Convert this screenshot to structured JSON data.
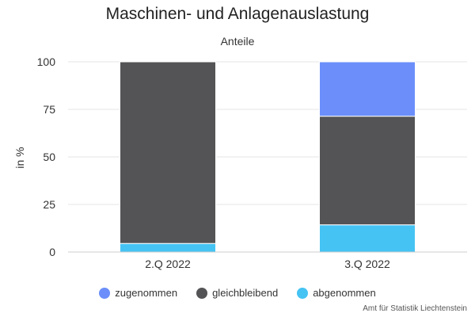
{
  "chart_data": {
    "type": "bar",
    "stacked": true,
    "title": "Maschinen- und Anlagenauslastung",
    "subtitle": "Anteile",
    "xlabel": "",
    "ylabel": "in %",
    "categories": [
      "2.Q 2022",
      "3.Q 2022"
    ],
    "ylim": [
      0,
      100
    ],
    "yticks": [
      0,
      25,
      50,
      75,
      100
    ],
    "grid": true,
    "legend_position": "bottom",
    "series": [
      {
        "name": "zugenommen",
        "color": "#6b8efa",
        "values": [
          0,
          28.6
        ]
      },
      {
        "name": "gleichbleibend",
        "color": "#545456",
        "values": [
          95.5,
          57.1
        ]
      },
      {
        "name": "abgenommen",
        "color": "#45c3f3",
        "values": [
          4.5,
          14.3
        ]
      }
    ],
    "credits": "Amt für Statistik Liechtenstein"
  }
}
